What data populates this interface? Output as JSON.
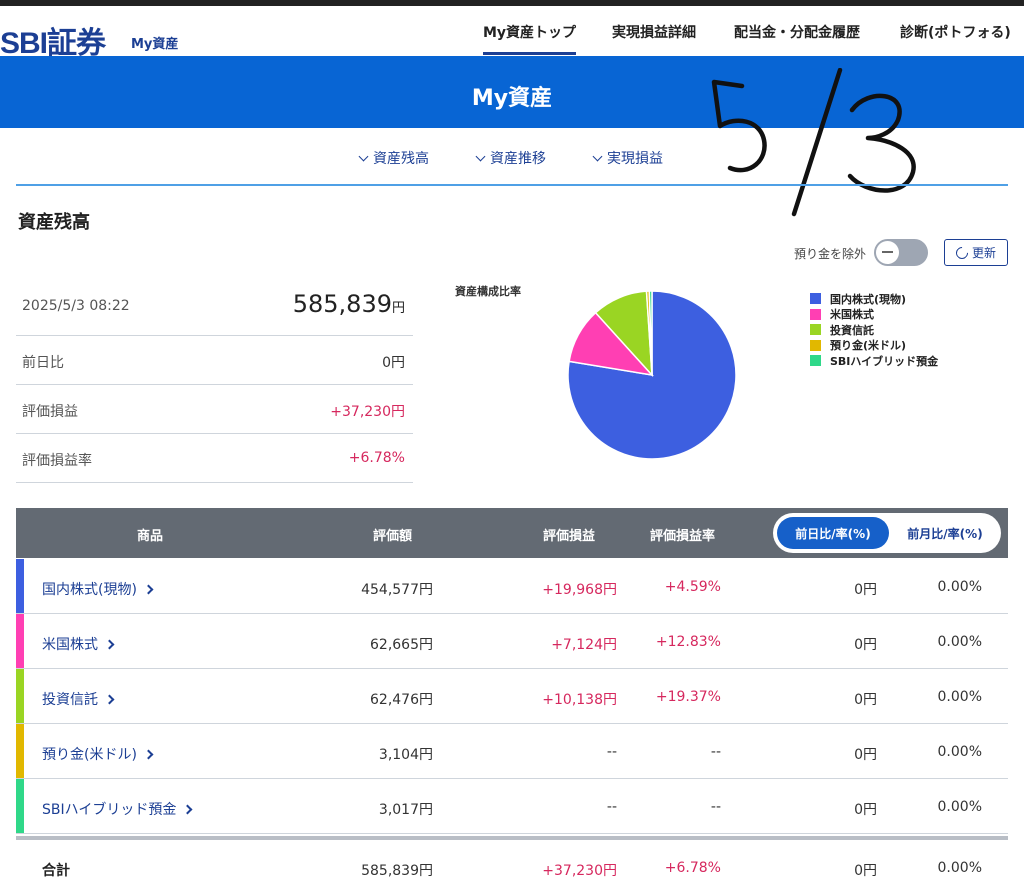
{
  "header": {
    "logo": "SBI証券",
    "logo_sub": "My資産",
    "nav": [
      "My資産トップ",
      "実現損益詳細",
      "配当金・分配金履歴",
      "診断(ポトフォる)"
    ]
  },
  "banner": {
    "title": "My資産"
  },
  "handwritten_note": "5/3",
  "subnav": [
    "資産残高",
    "資産推移",
    "実現損益"
  ],
  "section": {
    "title": "資産残高"
  },
  "controls": {
    "toggle_label": "預り金を除外",
    "refresh_label": "更新"
  },
  "summary": {
    "datetime": "2025/5/3 08:22",
    "total": "585,839",
    "total_unit": "円",
    "rows": [
      {
        "label": "前日比",
        "value": "0円"
      },
      {
        "label": "評価損益",
        "value": "+37,230円"
      },
      {
        "label": "評価損益率",
        "value": "+6.78%"
      }
    ]
  },
  "chart_data": {
    "type": "pie",
    "title": "資産構成比率",
    "legend_position": "right",
    "categories": [
      "国内株式(現物)",
      "米国株式",
      "投資信託",
      "預り金(米ドル)",
      "SBIハイブリッド預金"
    ],
    "values": [
      454577,
      62665,
      62476,
      3104,
      3017
    ],
    "colors": [
      "#3d5fe0",
      "#ff3fb3",
      "#9ad523",
      "#e1b800",
      "#2fd889"
    ]
  },
  "table": {
    "headers": {
      "product": "商品",
      "valuation": "評価額",
      "pl": "評価損益",
      "pl_rate": "評価損益率"
    },
    "tabs": [
      "前日比/率(%)",
      "前月比/率(%)"
    ],
    "rows": [
      {
        "name": "国内株式(現物)",
        "valuation": "454,577円",
        "pl": "+19,968円",
        "pl_rate": "+4.59%",
        "change": "0円",
        "change_rate": "0.00%",
        "color": "#3d5fe0"
      },
      {
        "name": "米国株式",
        "valuation": "62,665円",
        "pl": "+7,124円",
        "pl_rate": "+12.83%",
        "change": "0円",
        "change_rate": "0.00%",
        "color": "#ff3fb3"
      },
      {
        "name": "投資信託",
        "valuation": "62,476円",
        "pl": "+10,138円",
        "pl_rate": "+19.37%",
        "change": "0円",
        "change_rate": "0.00%",
        "color": "#9ad523"
      },
      {
        "name": "預り金(米ドル)",
        "valuation": "3,104円",
        "pl": "--",
        "pl_rate": "--",
        "change": "0円",
        "change_rate": "0.00%",
        "color": "#e1b800"
      },
      {
        "name": "SBIハイブリッド預金",
        "valuation": "3,017円",
        "pl": "--",
        "pl_rate": "--",
        "change": "0円",
        "change_rate": "0.00%",
        "color": "#2fd889"
      }
    ],
    "total": {
      "name": "合計",
      "valuation": "585,839円",
      "pl": "+37,230円",
      "pl_rate": "+6.78%",
      "change": "0円",
      "change_rate": "0.00%"
    }
  }
}
